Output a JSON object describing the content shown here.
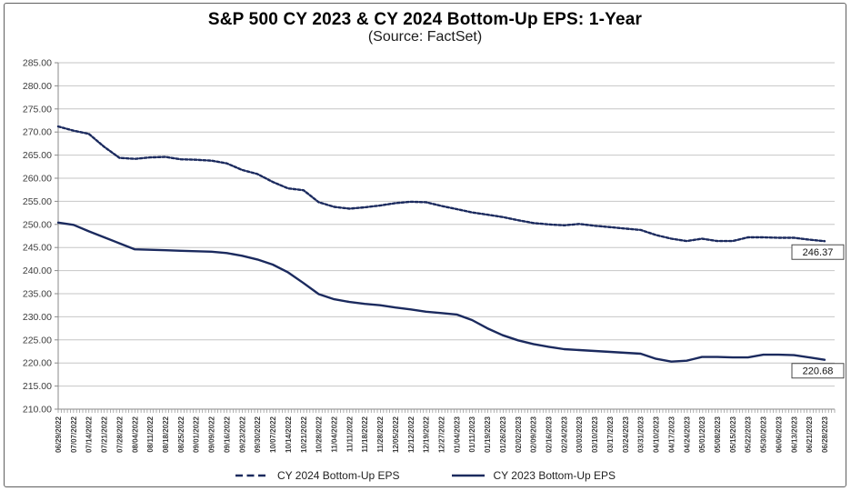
{
  "chart_data": {
    "type": "line",
    "title": "S&P 500 CY 2023 & CY 2024 Bottom-Up EPS: 1-Year",
    "subtitle": "(Source: FactSet)",
    "ylim": [
      210,
      285
    ],
    "ytick_step": 5,
    "y_ticks": [
      "285.00",
      "280.00",
      "275.00",
      "270.00",
      "265.00",
      "260.00",
      "255.00",
      "250.00",
      "245.00",
      "240.00",
      "235.00",
      "230.00",
      "225.00",
      "220.00",
      "215.00",
      "210.00"
    ],
    "grid": "horizontal",
    "legend_position": "bottom",
    "categories": [
      "06/29/2022",
      "07/07/2022",
      "07/14/2022",
      "07/21/2022",
      "07/28/2022",
      "08/04/2022",
      "08/11/2022",
      "08/18/2022",
      "08/25/2022",
      "09/01/2022",
      "09/09/2022",
      "09/16/2022",
      "09/23/2022",
      "09/30/2022",
      "10/07/2022",
      "10/14/2022",
      "10/21/2022",
      "10/28/2022",
      "11/04/2022",
      "11/11/2022",
      "11/18/2022",
      "11/28/2022",
      "12/05/2022",
      "12/12/2022",
      "12/19/2022",
      "12/27/2022",
      "01/04/2023",
      "01/11/2023",
      "01/19/2023",
      "01/26/2023",
      "02/02/2023",
      "02/09/2023",
      "02/16/2023",
      "02/24/2023",
      "03/03/2023",
      "03/10/2023",
      "03/17/2023",
      "03/24/2023",
      "03/31/2023",
      "04/10/2023",
      "04/17/2023",
      "04/24/2023",
      "05/01/2023",
      "05/08/2023",
      "05/15/2023",
      "05/22/2023",
      "05/30/2023",
      "06/06/2023",
      "06/13/2023",
      "06/21/2023",
      "06/28/2023"
    ],
    "series": [
      {
        "name": "CY 2024 Bottom-Up EPS",
        "style": "dashed",
        "end_label": "246.37",
        "values": [
          271.2,
          270.3,
          269.6,
          266.8,
          264.4,
          264.2,
          264.5,
          264.6,
          264.1,
          264.0,
          263.8,
          263.2,
          261.8,
          260.9,
          259.2,
          257.8,
          257.4,
          254.8,
          253.8,
          253.4,
          253.7,
          254.1,
          254.6,
          254.9,
          254.8,
          254.0,
          253.3,
          252.6,
          252.1,
          251.6,
          250.9,
          250.3,
          250.0,
          249.8,
          250.1,
          249.7,
          249.4,
          249.1,
          248.8,
          247.7,
          246.9,
          246.4,
          246.9,
          246.4,
          246.4,
          247.2,
          247.2,
          247.1,
          247.1,
          246.7,
          246.37
        ]
      },
      {
        "name": "CY 2023 Bottom-Up EPS",
        "style": "solid",
        "end_label": "220.68",
        "values": [
          250.4,
          249.9,
          248.5,
          247.2,
          245.9,
          244.6,
          244.5,
          244.4,
          244.3,
          244.2,
          244.1,
          243.8,
          243.2,
          242.4,
          241.3,
          239.6,
          237.3,
          234.9,
          233.8,
          233.2,
          232.8,
          232.5,
          232.0,
          231.6,
          231.1,
          230.8,
          230.5,
          229.3,
          227.5,
          226.0,
          224.9,
          224.1,
          223.5,
          223.0,
          222.8,
          222.6,
          222.4,
          222.2,
          222.0,
          220.9,
          220.3,
          220.5,
          221.3,
          221.3,
          221.2,
          221.2,
          221.8,
          221.8,
          221.7,
          221.2,
          220.68
        ]
      }
    ],
    "colors": {
      "series_line": "#1b2a5e",
      "grid": "#c6c6c6",
      "axis": "#8a8a8a",
      "tick": "#9a9a9a",
      "title_text": "#000000",
      "axis_text": "#3c3c3c",
      "end_label_border": "#4a4a4a",
      "end_label_bg": "#ffffff"
    }
  }
}
